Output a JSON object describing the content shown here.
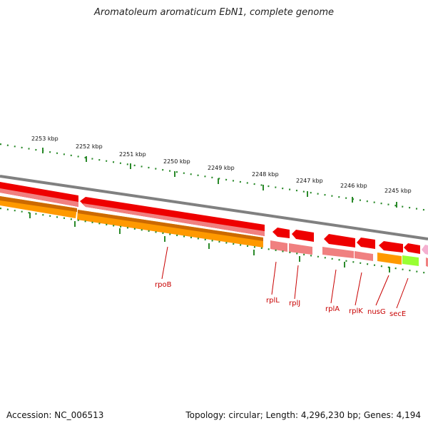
{
  "header": {
    "title": "Aromatoleum aromaticum EbN1, complete genome"
  },
  "footer": {
    "accession": "Accession: NC_006513",
    "summary": "Topology: circular; Length: 4,296,230 bp; Genes: 4,194"
  },
  "scale_labels": [
    "2253 kbp",
    "2252 kbp",
    "2251 kbp",
    "2250 kbp",
    "2249 kbp",
    "2248 kbp",
    "2247 kbp",
    "2246 kbp",
    "2245 kbp"
  ],
  "gene_labels": [
    "rpoB",
    "rplL",
    "rplJ",
    "rplA",
    "rplK",
    "nusG",
    "secE"
  ],
  "colors": {
    "gene": "#ee0000",
    "gene_pale": "#f08080",
    "orange": "#ff9900",
    "green": "#99ff33",
    "backbone": "#808080",
    "ticks": "#2a8a2a",
    "label": "#c80000"
  }
}
